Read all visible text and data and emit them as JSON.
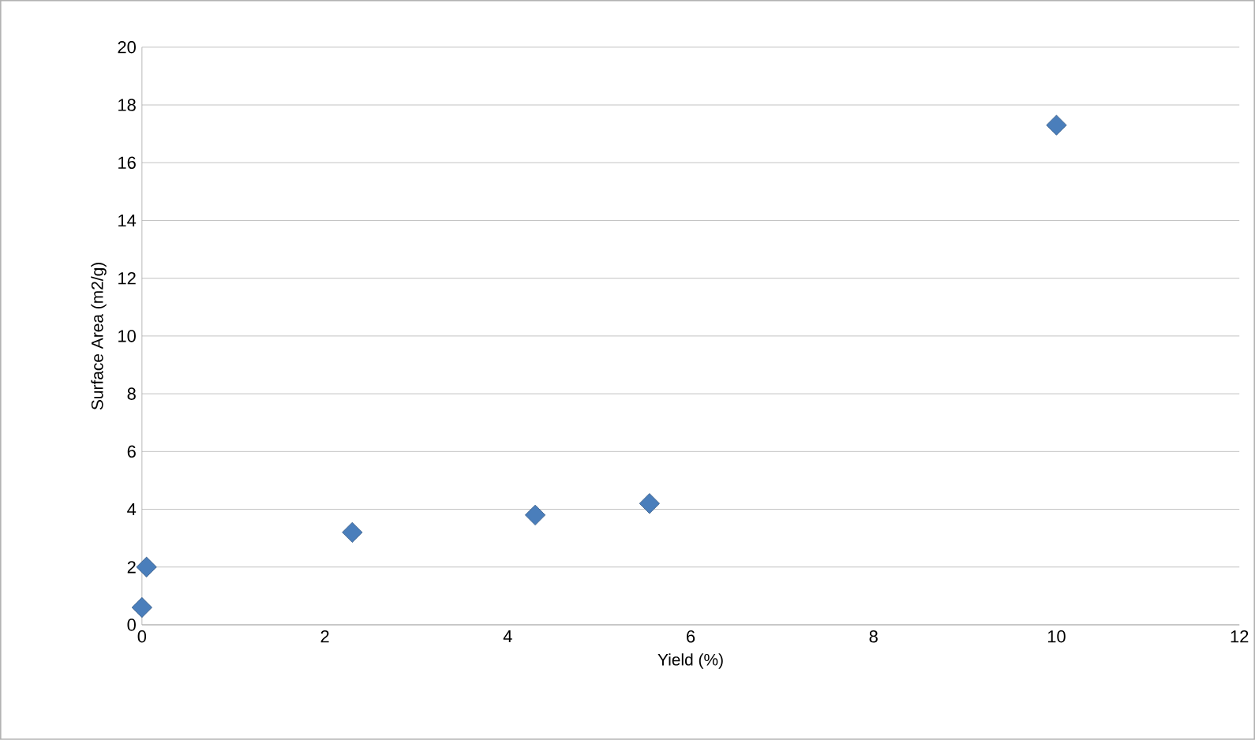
{
  "chart_data": {
    "type": "scatter",
    "xlabel": "Yield (%)",
    "ylabel": "Surface Area (m2/g)",
    "x": [
      0,
      0.05,
      2.3,
      4.3,
      5.55,
      10
    ],
    "values": [
      0.6,
      2.0,
      3.2,
      3.8,
      4.2,
      17.3
    ],
    "color": "#4a7ebb",
    "marker": "diamond",
    "xlim": [
      0,
      12
    ],
    "xticks": [
      0,
      2,
      4,
      6,
      8,
      10,
      12
    ],
    "ylim": [
      0,
      20
    ],
    "yticks": [
      0,
      2,
      4,
      6,
      8,
      10,
      12,
      14,
      16,
      18,
      20
    ],
    "grid": "y"
  }
}
